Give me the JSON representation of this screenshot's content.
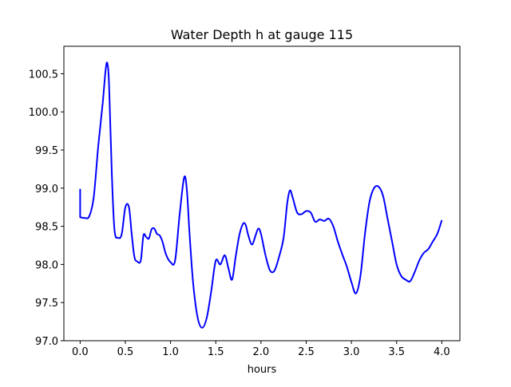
{
  "chart_data": {
    "type": "line",
    "title": "Water Depth h at gauge 115",
    "xlabel": "hours",
    "ylabel": "",
    "xlim": [
      -0.18,
      4.2
    ],
    "ylim": [
      97.0,
      100.86
    ],
    "xticks": [
      0.0,
      0.5,
      1.0,
      1.5,
      2.0,
      2.5,
      3.0,
      3.5,
      4.0
    ],
    "xtick_labels": [
      "0.0",
      "0.5",
      "1.0",
      "1.5",
      "2.0",
      "2.5",
      "3.0",
      "3.5",
      "4.0"
    ],
    "yticks": [
      97.0,
      97.5,
      98.0,
      98.5,
      99.0,
      99.5,
      100.0,
      100.5
    ],
    "ytick_labels": [
      "97.0",
      "97.5",
      "98.0",
      "98.5",
      "99.0",
      "99.5",
      "100.0",
      "100.5"
    ],
    "grid": false,
    "legend": "none",
    "series": [
      {
        "color": "#0000ff",
        "x": [
          0.0,
          0.0,
          0.05,
          0.1,
          0.15,
          0.2,
          0.25,
          0.28,
          0.3,
          0.32,
          0.35,
          0.38,
          0.42,
          0.46,
          0.5,
          0.54,
          0.57,
          0.6,
          0.63,
          0.67,
          0.7,
          0.73,
          0.76,
          0.79,
          0.82,
          0.85,
          0.88,
          0.91,
          0.95,
          1.0,
          1.05,
          1.1,
          1.15,
          1.18,
          1.21,
          1.25,
          1.3,
          1.35,
          1.4,
          1.45,
          1.5,
          1.55,
          1.6,
          1.64,
          1.68,
          1.72,
          1.76,
          1.8,
          1.83,
          1.86,
          1.9,
          1.94,
          1.97,
          2.0,
          2.05,
          2.1,
          2.15,
          2.2,
          2.25,
          2.29,
          2.32,
          2.35,
          2.4,
          2.45,
          2.5,
          2.55,
          2.6,
          2.65,
          2.7,
          2.75,
          2.8,
          2.85,
          2.9,
          2.95,
          3.0,
          3.05,
          3.1,
          3.15,
          3.2,
          3.25,
          3.3,
          3.35,
          3.4,
          3.45,
          3.5,
          3.55,
          3.6,
          3.65,
          3.7,
          3.75,
          3.8,
          3.85,
          3.9,
          3.95,
          4.0
        ],
        "y": [
          98.99,
          98.62,
          98.61,
          98.63,
          98.88,
          99.55,
          100.12,
          100.53,
          100.64,
          100.35,
          99.2,
          98.45,
          98.35,
          98.4,
          98.75,
          98.75,
          98.4,
          98.1,
          98.04,
          98.05,
          98.38,
          98.36,
          98.34,
          98.46,
          98.47,
          98.4,
          98.38,
          98.3,
          98.13,
          98.03,
          98.05,
          98.65,
          99.14,
          98.98,
          98.4,
          97.75,
          97.3,
          97.17,
          97.3,
          97.65,
          98.05,
          98.0,
          98.12,
          97.95,
          97.8,
          98.1,
          98.38,
          98.53,
          98.52,
          98.38,
          98.26,
          98.38,
          98.47,
          98.4,
          98.12,
          97.92,
          97.92,
          98.1,
          98.35,
          98.8,
          98.97,
          98.88,
          98.68,
          98.66,
          98.7,
          98.68,
          98.56,
          98.59,
          98.57,
          98.6,
          98.5,
          98.3,
          98.13,
          97.97,
          97.77,
          97.62,
          97.85,
          98.4,
          98.82,
          99.0,
          99.02,
          98.9,
          98.6,
          98.3,
          98.0,
          97.85,
          97.8,
          97.78,
          97.9,
          98.05,
          98.15,
          98.2,
          98.3,
          98.4,
          98.58
        ]
      }
    ]
  }
}
